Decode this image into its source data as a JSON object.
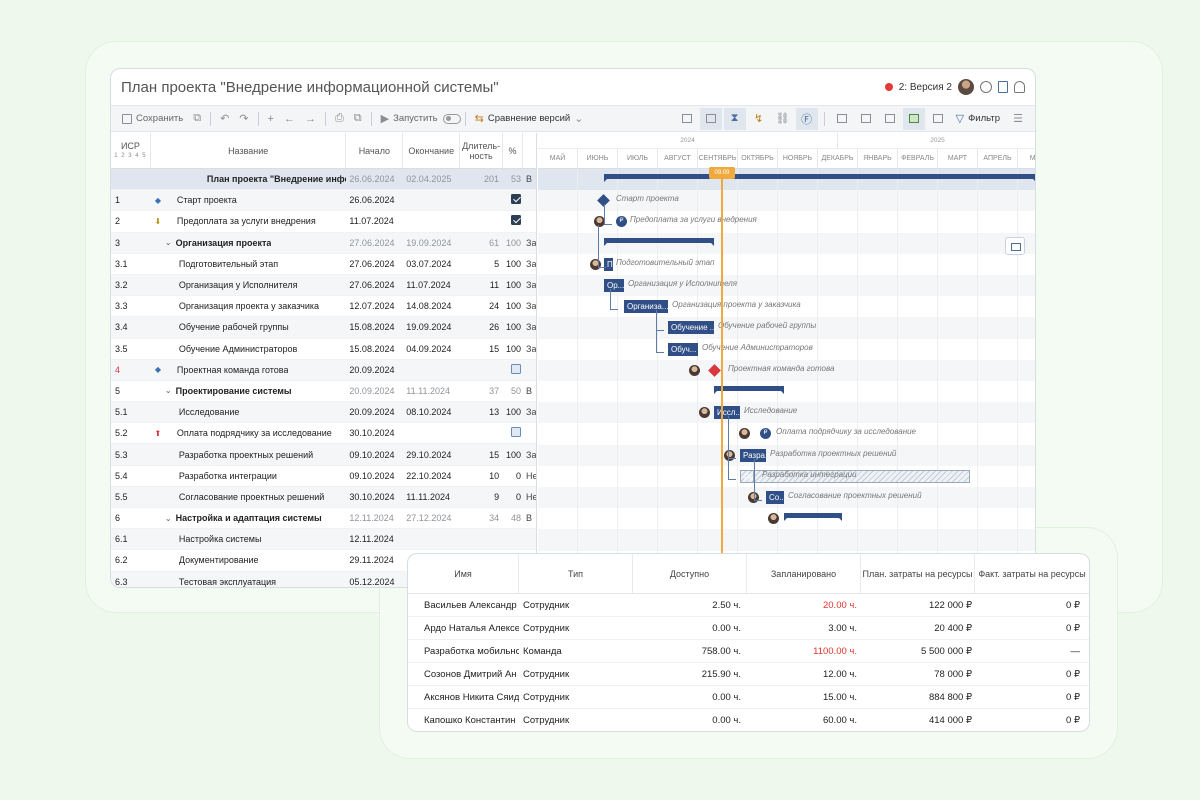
{
  "window": {
    "title": "План проекта \"Внедрение информационной системы\"",
    "version_label": "2: Версия 2"
  },
  "toolbar": {
    "save": "Сохранить",
    "run": "Запустить",
    "compare": "Сравнение версий",
    "filter": "Фильтр"
  },
  "grid": {
    "headers": {
      "isr": "ИСР",
      "levels": "1 2 3 4 5",
      "name": "Название",
      "start": "Начало",
      "end": "Окончание",
      "duration": "Длитель-ность",
      "percent": "%"
    },
    "rows": [
      {
        "isr": "",
        "name": "План проекта \"Внедрение информаци...",
        "start": "26.06.2024",
        "end": "02.04.2025",
        "dur": "201",
        "pct": "53",
        "x": "В",
        "kind": "root"
      },
      {
        "isr": "1",
        "name": "Старт проекта",
        "start": "26.06.2024",
        "end": "",
        "dur": "",
        "pct": "",
        "x": "",
        "kind": "milestone",
        "mark": "◆",
        "check": "on"
      },
      {
        "isr": "2",
        "name": "Предоплата за услуги внедрения",
        "start": "11.07.2024",
        "end": "",
        "dur": "",
        "pct": "",
        "x": "",
        "kind": "payment-in",
        "mark": "⬇",
        "check": "on"
      },
      {
        "isr": "3",
        "name": "Организация проекта",
        "start": "27.06.2024",
        "end": "19.09.2024",
        "dur": "61",
        "pct": "100",
        "x": "За",
        "kind": "group"
      },
      {
        "isr": "3.1",
        "name": "Подготовительный этап",
        "start": "27.06.2024",
        "end": "03.07.2024",
        "dur": "5",
        "pct": "100",
        "x": "За",
        "kind": "task"
      },
      {
        "isr": "3.2",
        "name": "Организация у Исполнителя",
        "start": "27.06.2024",
        "end": "11.07.2024",
        "dur": "11",
        "pct": "100",
        "x": "За",
        "kind": "task"
      },
      {
        "isr": "3.3",
        "name": "Организация проекта у заказчика",
        "start": "12.07.2024",
        "end": "14.08.2024",
        "dur": "24",
        "pct": "100",
        "x": "За",
        "kind": "task"
      },
      {
        "isr": "3.4",
        "name": "Обучение рабочей группы",
        "start": "15.08.2024",
        "end": "19.09.2024",
        "dur": "26",
        "pct": "100",
        "x": "За",
        "kind": "task"
      },
      {
        "isr": "3.5",
        "name": "Обучение Администраторов",
        "start": "15.08.2024",
        "end": "04.09.2024",
        "dur": "15",
        "pct": "100",
        "x": "За",
        "kind": "task"
      },
      {
        "isr": "4",
        "name": "Проектная команда готова",
        "start": "20.09.2024",
        "end": "",
        "dur": "",
        "pct": "",
        "x": "",
        "kind": "milestone",
        "mark": "◆",
        "check": "off",
        "isr_red": true
      },
      {
        "isr": "5",
        "name": "Проектирование системы",
        "start": "20.09.2024",
        "end": "11.11.2024",
        "dur": "37",
        "pct": "50",
        "x": "В",
        "kind": "group"
      },
      {
        "isr": "5.1",
        "name": "Исследование",
        "start": "20.09.2024",
        "end": "08.10.2024",
        "dur": "13",
        "pct": "100",
        "x": "За",
        "kind": "task"
      },
      {
        "isr": "5.2",
        "name": "Оплата подрядчику за исследование",
        "start": "30.10.2024",
        "end": "",
        "dur": "",
        "pct": "",
        "x": "",
        "kind": "payment-out",
        "mark": "⬆",
        "check": "off"
      },
      {
        "isr": "5.3",
        "name": "Разработка проектных решений",
        "start": "09.10.2024",
        "end": "29.10.2024",
        "dur": "15",
        "pct": "100",
        "x": "За",
        "kind": "task"
      },
      {
        "isr": "5.4",
        "name": "Разработка интеграции",
        "start": "09.10.2024",
        "end": "22.10.2024",
        "dur": "10",
        "pct": "0",
        "x": "Не",
        "kind": "task"
      },
      {
        "isr": "5.5",
        "name": "Согласование проектных решений",
        "start": "30.10.2024",
        "end": "11.11.2024",
        "dur": "9",
        "pct": "0",
        "x": "Не",
        "kind": "task"
      },
      {
        "isr": "6",
        "name": "Настройка и адаптация системы",
        "start": "12.11.2024",
        "end": "27.12.2024",
        "dur": "34",
        "pct": "48",
        "x": "В",
        "kind": "group"
      },
      {
        "isr": "6.1",
        "name": "Настройка системы",
        "start": "12.11.2024",
        "end": "",
        "dur": "",
        "pct": "",
        "x": "",
        "kind": "task"
      },
      {
        "isr": "6.2",
        "name": "Документирование",
        "start": "29.11.2024",
        "end": "",
        "dur": "",
        "pct": "",
        "x": "",
        "kind": "task"
      },
      {
        "isr": "6.3",
        "name": "Тестовая эксплуатация",
        "start": "05.12.2024",
        "end": "",
        "dur": "",
        "pct": "",
        "x": "",
        "kind": "task"
      }
    ]
  },
  "gantt": {
    "years": [
      "2024",
      "2025"
    ],
    "months": [
      "МАЙ",
      "ИЮНЬ",
      "ИЮЛЬ",
      "АВГУСТ",
      "СЕНТЯБРЬ",
      "ОКТЯБРЬ",
      "НОЯБРЬ",
      "ДЕКАБРЬ",
      "ЯНВАРЬ",
      "ФЕВРАЛЬ",
      "МАРТ",
      "АПРЕЛЬ",
      "МАЙ"
    ],
    "today_label": "09.09",
    "bars": [
      {
        "label": "П"
      },
      {
        "label": "Ор..."
      },
      {
        "label": "Организа..."
      },
      {
        "label": "Обучение ..."
      },
      {
        "label": "Обуч..."
      },
      {
        "label": "Иссл..."
      },
      {
        "label": "Разра..."
      },
      {
        "label": "Раз..."
      },
      {
        "label": "Со..."
      }
    ],
    "labels": [
      "Старт проекта",
      "Предоплата за услуги внедрения",
      "Подготовительный этап",
      "Организация у Исполнителя",
      "Организация проекта у заказчика",
      "Обучение рабочей группы",
      "Обучение Администраторов",
      "Проектная команда готова",
      "Исследование",
      "Оплата подрядчику за исследование",
      "Разработка проектных решений",
      "Разработка интеграции",
      "Согласование проектных решений"
    ],
    "bag_symbol": "₽"
  },
  "resources": {
    "headers": [
      "Имя",
      "Тип",
      "Доступно",
      "Запланировано",
      "План. затраты на ресурсы",
      "Факт. затраты на ресурсы"
    ],
    "rows": [
      {
        "name": "Васильев Александр ...",
        "type": "Сотрудник",
        "avail": "2.50 ч.",
        "planned": "20.00 ч.",
        "plan_cost": "122 000 ₽",
        "fact_cost": "0 ₽",
        "over": true
      },
      {
        "name": "Ардо Наталья Алексе",
        "type": "Сотрудник",
        "avail": "0.00 ч.",
        "planned": "3.00 ч.",
        "plan_cost": "20 400 ₽",
        "fact_cost": "0 ₽",
        "over": false
      },
      {
        "name": "Разработка мобильно",
        "type": "Команда",
        "avail": "758.00 ч.",
        "planned": "1100.00 ч.",
        "plan_cost": "5 500 000 ₽",
        "fact_cost": "—",
        "over": true
      },
      {
        "name": "Созонов Дмитрий Ан",
        "type": "Сотрудник",
        "avail": "215.90 ч.",
        "planned": "12.00 ч.",
        "plan_cost": "78 000 ₽",
        "fact_cost": "0 ₽",
        "over": false
      },
      {
        "name": "Аксянов Никита Сяид",
        "type": "Сотрудник",
        "avail": "0.00 ч.",
        "planned": "15.00 ч.",
        "plan_cost": "884 800 ₽",
        "fact_cost": "0 ₽",
        "over": false
      },
      {
        "name": "Капошко Константин",
        "type": "Сотрудник",
        "avail": "0.00 ч.",
        "planned": "60.00 ч.",
        "plan_cost": "414 000 ₽",
        "fact_cost": "0 ₽",
        "over": false
      }
    ]
  },
  "colors": {
    "accent": "#2f4f86",
    "today": "#f0a93c",
    "overload": "#e0352b",
    "background": "#eef8ec"
  }
}
